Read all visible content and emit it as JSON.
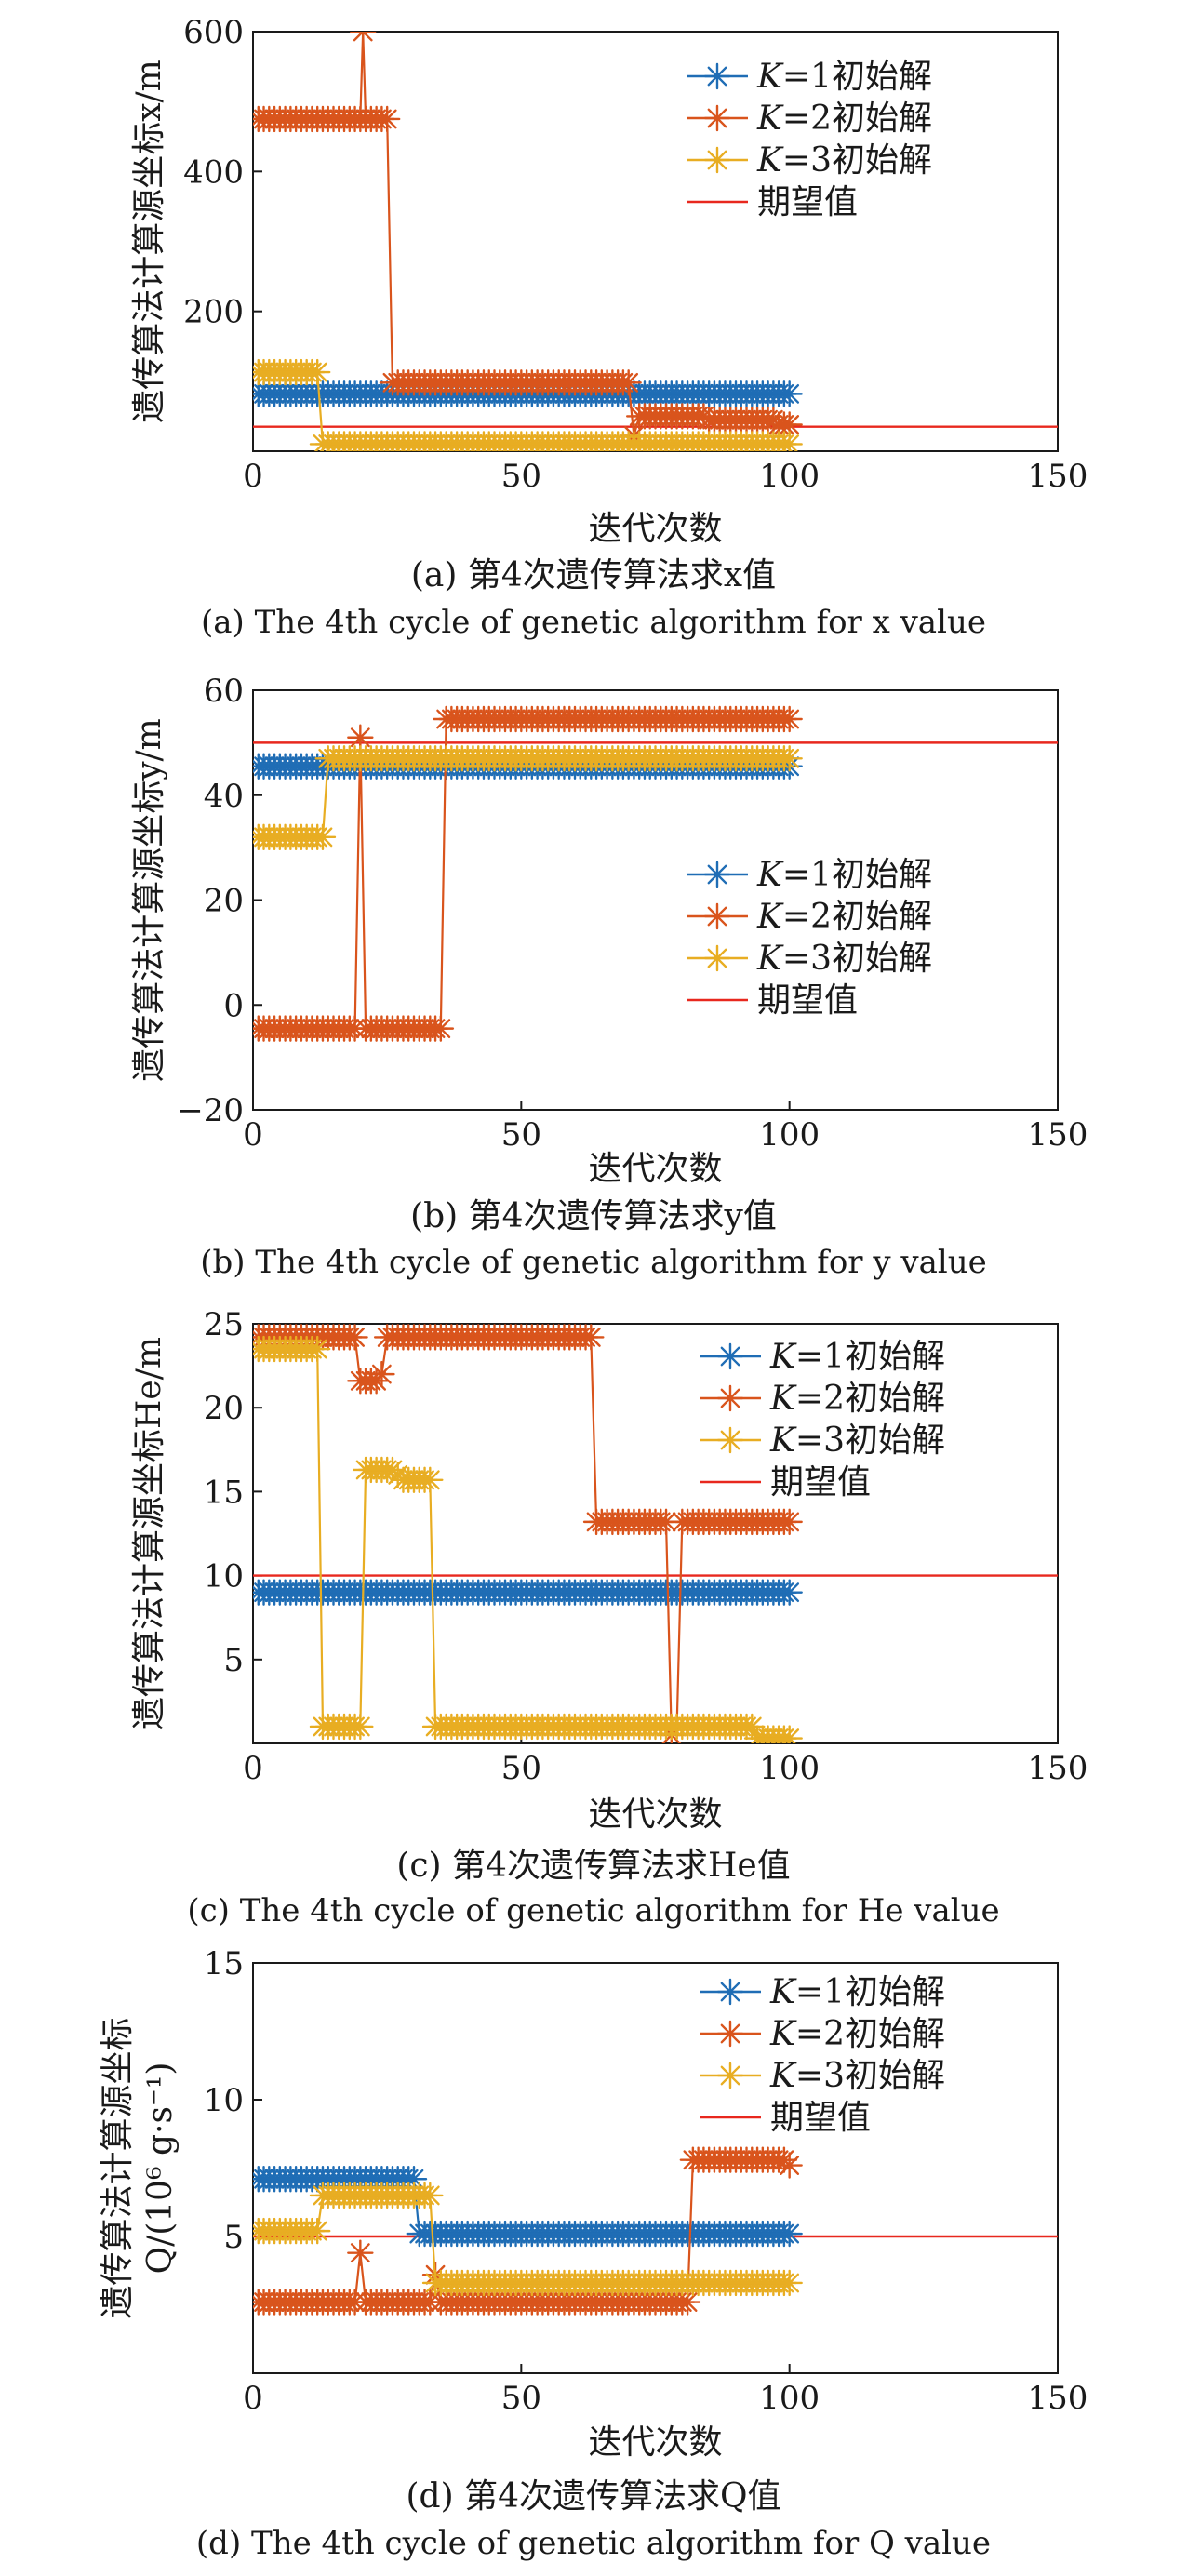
{
  "colors": {
    "k1": "#1f6db5",
    "k2": "#d9541c",
    "k3": "#e8ad22",
    "expected": "#e8281e"
  },
  "chart_data": [
    {
      "type": "scatter",
      "id": "a",
      "xlabel": "迭代次数",
      "ylabel": "遗传算法计算源坐标x/m",
      "xlim": [
        0,
        150
      ],
      "ylim": [
        0,
        600
      ],
      "xticks": [
        0,
        50,
        100,
        150
      ],
      "yticks": [
        200,
        400,
        600
      ],
      "caption_cn": "(a) 第4次遗传算法求x值",
      "caption_en": "(a) The 4th cycle of genetic algorithm for x value",
      "legend_position": "top-right",
      "legend": [
        "K=1初始解",
        "K=2初始解",
        "K=3初始解",
        "期望值"
      ],
      "expected": 35,
      "series": [
        {
          "name": "K=1初始解",
          "key": "k1",
          "points": [
            [
              1,
              82
            ],
            [
              100,
              82
            ]
          ]
        },
        {
          "name": "K=2初始解",
          "key": "k2",
          "points": [
            [
              1,
              475
            ],
            [
              20,
              475
            ],
            [
              20.5,
              600
            ],
            [
              21,
              475
            ],
            [
              25,
              475
            ],
            [
              26,
              98
            ],
            [
              70,
              98
            ],
            [
              71,
              22
            ],
            [
              72,
              50
            ],
            [
              85,
              45
            ],
            [
              98,
              38
            ],
            [
              100,
              38
            ]
          ]
        },
        {
          "name": "K=3初始解",
          "key": "k3",
          "points": [
            [
              1,
              113
            ],
            [
              12,
              113
            ],
            [
              13,
              10
            ],
            [
              100,
              10
            ]
          ]
        }
      ]
    },
    {
      "type": "scatter",
      "id": "b",
      "xlabel": "迭代次数",
      "ylabel": "遗传算法计算源坐标y/m",
      "xlim": [
        0,
        150
      ],
      "ylim": [
        -20,
        60
      ],
      "xticks": [
        0,
        50,
        100,
        150
      ],
      "yticks": [
        -20,
        0,
        20,
        40,
        60
      ],
      "caption_cn": "(b) 第4次遗传算法求y值",
      "caption_en": "(b) The 4th cycle of genetic algorithm for y value",
      "legend_position": "right",
      "legend": [
        "K=1初始解",
        "K=2初始解",
        "K=3初始解",
        "期望值"
      ],
      "expected": 50,
      "series": [
        {
          "name": "K=1初始解",
          "key": "k1",
          "points": [
            [
              1,
              45.5
            ],
            [
              100,
              45.5
            ]
          ]
        },
        {
          "name": "K=2初始解",
          "key": "k2",
          "points": [
            [
              1,
              -4.5
            ],
            [
              19,
              -4.5
            ],
            [
              20,
              51
            ],
            [
              21,
              -4.5
            ],
            [
              35,
              -4.5
            ],
            [
              36,
              54.5
            ],
            [
              100,
              54.5
            ]
          ]
        },
        {
          "name": "K=3初始解",
          "key": "k3",
          "points": [
            [
              1,
              32
            ],
            [
              13,
              32
            ],
            [
              14,
              47
            ],
            [
              100,
              47
            ]
          ]
        }
      ]
    },
    {
      "type": "scatter",
      "id": "c",
      "xlabel": "迭代次数",
      "ylabel": "遗传算法计算源坐标He/m",
      "xlim": [
        0,
        150
      ],
      "ylim": [
        0,
        25
      ],
      "xticks": [
        0,
        50,
        100,
        150
      ],
      "yticks": [
        5,
        10,
        15,
        20,
        25
      ],
      "caption_cn": "(c) 第4次遗传算法求He值",
      "caption_en": "(c) The 4th cycle of genetic algorithm for He value",
      "legend_position": "top-right",
      "legend": [
        "K=1初始解",
        "K=2初始解",
        "K=3初始解",
        "期望值"
      ],
      "expected": 10,
      "series": [
        {
          "name": "K=1初始解",
          "key": "k1",
          "points": [
            [
              1,
              9
            ],
            [
              100,
              9
            ]
          ]
        },
        {
          "name": "K=2初始解",
          "key": "k2",
          "points": [
            [
              1,
              24.2
            ],
            [
              19,
              24.2
            ],
            [
              20,
              21.6
            ],
            [
              24,
              22
            ],
            [
              25,
              24.2
            ],
            [
              63,
              24.2
            ],
            [
              64,
              13.2
            ],
            [
              77,
              13.2
            ],
            [
              78,
              0.5
            ],
            [
              79,
              1
            ],
            [
              80,
              13.2
            ],
            [
              100,
              13.2
            ]
          ]
        },
        {
          "name": "K=3初始解",
          "key": "k3",
          "points": [
            [
              1,
              23.5
            ],
            [
              12,
              23.5
            ],
            [
              13,
              1
            ],
            [
              20,
              1
            ],
            [
              21,
              16.3
            ],
            [
              27,
              16
            ],
            [
              28,
              15.7
            ],
            [
              33,
              15.7
            ],
            [
              34,
              1
            ],
            [
              93,
              1
            ],
            [
              94,
              0.3
            ],
            [
              100,
              0.3
            ]
          ]
        }
      ]
    },
    {
      "type": "scatter",
      "id": "d",
      "xlabel": "迭代次数",
      "ylabel_line1": "遗传算法计算源坐标",
      "ylabel_line2": "Q/(10⁶ g·s⁻¹)",
      "xlim": [
        0,
        150
      ],
      "ylim": [
        0,
        15
      ],
      "xticks": [
        0,
        50,
        100,
        150
      ],
      "yticks": [
        5,
        10,
        15
      ],
      "caption_cn": "(d) 第4次遗传算法求Q值",
      "caption_en": "(d) The 4th cycle of genetic algorithm for Q value",
      "legend_position": "top-right",
      "legend": [
        "K=1初始解",
        "K=2初始解",
        "K=3初始解",
        "期望值"
      ],
      "expected": 5,
      "series": [
        {
          "name": "K=1初始解",
          "key": "k1",
          "points": [
            [
              1,
              7.1
            ],
            [
              30,
              7.1
            ],
            [
              31,
              5.1
            ],
            [
              100,
              5.1
            ]
          ]
        },
        {
          "name": "K=2初始解",
          "key": "k2",
          "points": [
            [
              1,
              2.6
            ],
            [
              19,
              2.6
            ],
            [
              20,
              4.4
            ],
            [
              21,
              2.6
            ],
            [
              33,
              2.6
            ],
            [
              34,
              3.6
            ],
            [
              35,
              2.6
            ],
            [
              81,
              2.6
            ],
            [
              82,
              7.8
            ],
            [
              98,
              7.8
            ],
            [
              100,
              7.6
            ]
          ]
        },
        {
          "name": "K=3初始解",
          "key": "k3",
          "points": [
            [
              1,
              5.2
            ],
            [
              12,
              5.2
            ],
            [
              13,
              6.5
            ],
            [
              33,
              6.5
            ],
            [
              34,
              3.3
            ],
            [
              100,
              3.3
            ]
          ]
        }
      ]
    }
  ]
}
